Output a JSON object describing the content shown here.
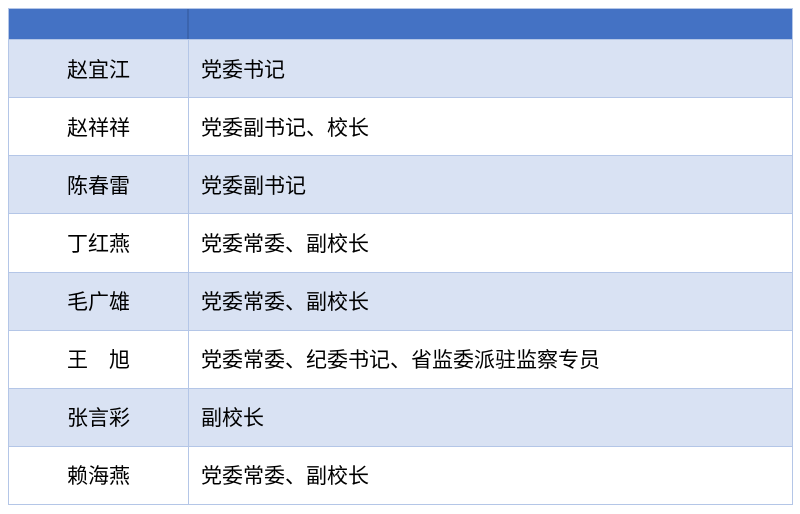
{
  "table": {
    "header": {
      "name_col": "",
      "title_col": ""
    },
    "rows": [
      {
        "name": "赵宜江",
        "title": "党委书记"
      },
      {
        "name": "赵祥祥",
        "title": "党委副书记、校长"
      },
      {
        "name": "陈春雷",
        "title": "党委副书记"
      },
      {
        "name": "丁红燕",
        "title": "党委常委、副校长"
      },
      {
        "name": "毛广雄",
        "title": "党委常委、副校长"
      },
      {
        "name": "王　旭",
        "title": "党委常委、纪委书记、省监委派驻监察专员"
      },
      {
        "name": "张言彩",
        "title": "副校长"
      },
      {
        "name": "赖海燕",
        "title": "党委常委、副校长"
      }
    ],
    "colors": {
      "header_bg": "#4472C4",
      "header_divider": "#3B64AE",
      "band_bg": "#D9E2F3",
      "row_bg": "#FFFFFF",
      "border": "#B4C6E7",
      "text": "#000000",
      "page_bg": "#FFFFFF"
    }
  }
}
